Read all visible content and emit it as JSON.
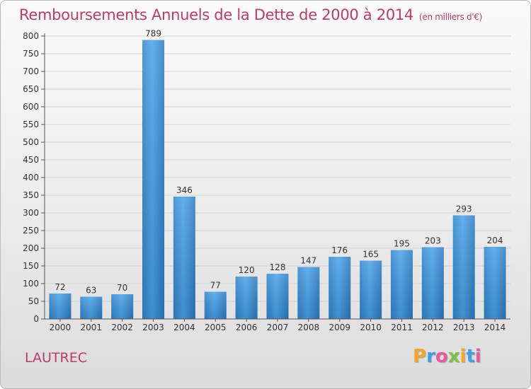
{
  "title": "Remboursements Annuels de la Dette de 2000 à 2014",
  "title_unit": "(en milliers d'€)",
  "town": "LAUTREC",
  "logo": {
    "letters": [
      "P",
      "r",
      "o",
      "x",
      "i",
      "t",
      "i"
    ],
    "colors": [
      "#f5a623",
      "#3c9de8",
      "#e85a9b",
      "#7cc142",
      "#f5a623",
      "#3c9de8",
      "#e85a9b"
    ]
  },
  "colors": {
    "bar": "#3d95db",
    "bar_light": "#6bb5ef",
    "bar_dark": "#2877bf",
    "title": "#c0396b"
  },
  "chart_data": {
    "type": "bar",
    "categories": [
      "2000",
      "2001",
      "2002",
      "2003",
      "2004",
      "2005",
      "2006",
      "2007",
      "2008",
      "2009",
      "2010",
      "2011",
      "2012",
      "2013",
      "2014"
    ],
    "values": [
      72,
      63,
      70,
      789,
      346,
      77,
      120,
      128,
      147,
      176,
      165,
      195,
      203,
      293,
      204
    ],
    "ylim": [
      0,
      800
    ],
    "yticks": [
      0,
      50,
      100,
      150,
      200,
      250,
      300,
      350,
      400,
      450,
      500,
      550,
      600,
      650,
      700,
      750,
      800
    ],
    "grid": true
  }
}
